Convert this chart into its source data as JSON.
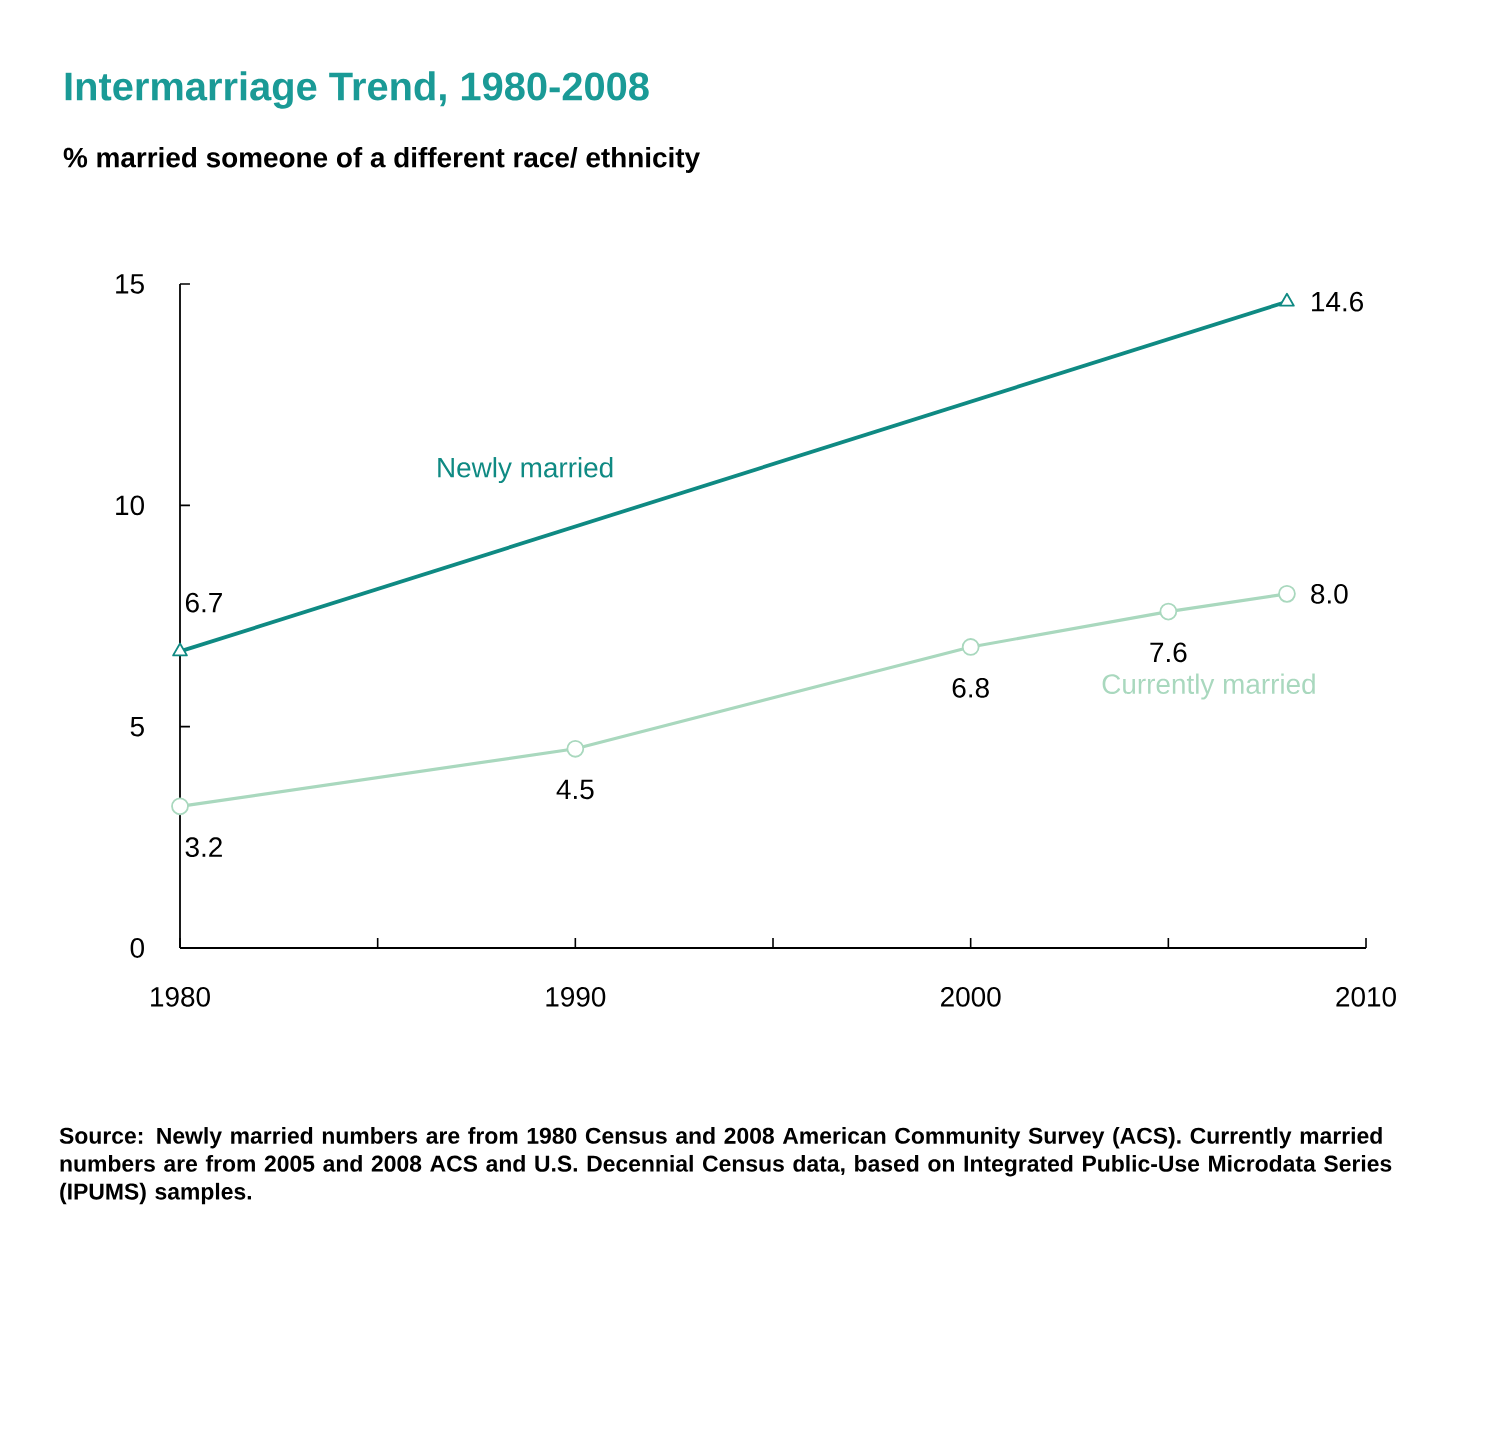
{
  "chart_data": {
    "type": "line",
    "title": "Intermarriage Trend, 1980-2008",
    "subtitle": "% married someone of a different race/ ethnicity",
    "xlim": [
      1980,
      2010
    ],
    "xticks": [
      1980,
      {
        "value": 1985,
        "label": null
      },
      1990,
      {
        "value": 1995,
        "label": null
      },
      2000,
      {
        "value": 2005,
        "label": null
      },
      2010
    ],
    "ylim": [
      0,
      15
    ],
    "yticks": [
      0,
      5,
      10,
      15
    ],
    "grid": false,
    "legend": false,
    "series": [
      {
        "name": "Newly married",
        "color": "#0f8a83",
        "marker": "triangle",
        "x": [
          1980,
          2008
        ],
        "values": [
          6.7,
          14.6
        ],
        "value_labels": [
          "6.7",
          "14.6"
        ]
      },
      {
        "name": "Currently married",
        "color": "#a9d8be",
        "marker": "circle",
        "x": [
          1980,
          1990,
          2000,
          2005,
          2008
        ],
        "values": [
          3.2,
          4.5,
          6.8,
          7.6,
          8.0
        ],
        "value_labels": [
          "3.2",
          "4.5",
          "6.8",
          "7.6",
          "8.0"
        ]
      }
    ],
    "annotations": [
      "Source: Newly married numbers are from 1980 Census and 2008 American Community Survey (ACS). Currently married numbers are from 2005 and 2008 ACS and U.S. Decennial Census data, based on Integrated Public-Use Microdata Series (IPUMS) samples."
    ]
  }
}
